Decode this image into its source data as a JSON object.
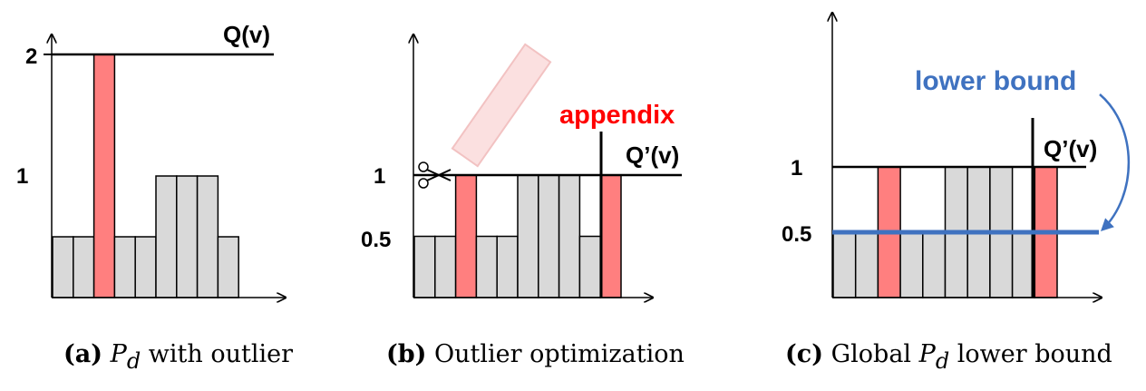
{
  "colors": {
    "gray_bar": "#d9d9d9",
    "red_bar": "#ff7f7f",
    "blue_bound": "#3f72c0",
    "appendix_red": "#ff0000",
    "ghost_bar": "#fbe0e0"
  },
  "icons": {
    "cut": "scissors-icon"
  },
  "panel_a": {
    "tick_2": "2",
    "tick_1": "1",
    "line_label": "Q(v)",
    "bars": [
      0.5,
      0.5,
      2,
      0.5,
      0.5,
      1,
      1,
      1,
      0.5
    ],
    "highlight": [
      2
    ],
    "caption_tag": "(a)",
    "caption_var": "P",
    "caption_sub": "d",
    "caption_text": " with outlier"
  },
  "panel_b": {
    "tick_1": "1",
    "tick_05": "0.5",
    "line_label": "Q’(v)",
    "annotation": "appendix",
    "bars": [
      0.5,
      0.5,
      1,
      0.5,
      0.5,
      1,
      1,
      1,
      0.5,
      1
    ],
    "highlight": [
      2,
      9
    ],
    "caption_tag": "(b)",
    "caption_text": " Outlier optimization"
  },
  "panel_c": {
    "tick_1": "1",
    "tick_05": "0.5",
    "line_label": "Q’(v)",
    "annotation": "lower bound",
    "bars": [
      0.5,
      0.5,
      1,
      0.5,
      0.5,
      1,
      1,
      1,
      0.5,
      1
    ],
    "highlight": [
      2,
      9
    ],
    "lower_bound": 0.5,
    "caption_tag": "(c)",
    "caption_pre": " Global ",
    "caption_var": "P",
    "caption_sub": "d",
    "caption_text": " lower bound"
  }
}
